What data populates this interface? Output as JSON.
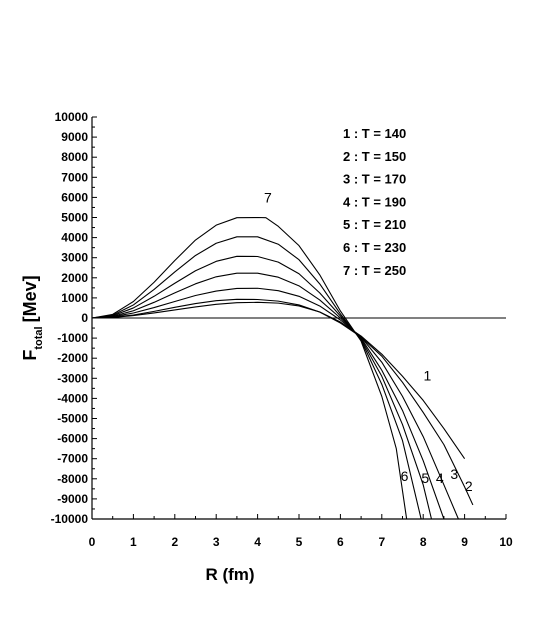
{
  "chart_data": {
    "type": "line",
    "xlabel": "R (fm)",
    "ylabel_main": "F",
    "ylabel_sub": "total",
    "ylabel_unit": "[Mev]",
    "xlim": [
      0,
      10
    ],
    "ylim": [
      -10000,
      10000
    ],
    "xticks": [
      0,
      1,
      2,
      3,
      4,
      5,
      6,
      7,
      8,
      9,
      10
    ],
    "yticks": [
      10000,
      9000,
      8000,
      7000,
      6000,
      5000,
      4000,
      3000,
      2000,
      1000,
      0,
      -1000,
      -2000,
      -3000,
      -4000,
      -5000,
      -6000,
      -7000,
      -8000,
      -9000,
      -10000
    ],
    "legend_placement": "top-right",
    "grid": false,
    "legend": [
      "1 : T = 140",
      "2 : T = 150",
      "3 : T = 170",
      "4 : T = 190",
      "5 : T = 210",
      "6 : T = 230",
      "7 : T = 250"
    ],
    "series": [
      {
        "label": "1",
        "x": [
          0,
          0.5,
          1,
          1.5,
          2,
          2.5,
          3,
          3.5,
          4,
          4.5,
          5,
          5.5,
          6,
          6.5,
          7,
          7.5,
          8,
          8.5,
          9
        ],
        "y": [
          0,
          30,
          120,
          250,
          400,
          550,
          680,
          760,
          780,
          740,
          600,
          300,
          -200,
          -900,
          -1800,
          -2900,
          -4100,
          -5500,
          -7000
        ]
      },
      {
        "label": "2",
        "x": [
          0,
          0.5,
          1,
          1.5,
          2,
          2.5,
          3,
          3.5,
          4,
          4.5,
          5,
          5.5,
          6,
          6.5,
          7,
          7.5,
          8,
          8.5,
          9,
          9.2
        ],
        "y": [
          0,
          40,
          150,
          330,
          530,
          720,
          860,
          930,
          920,
          840,
          650,
          300,
          -250,
          -950,
          -1900,
          -3200,
          -4700,
          -6300,
          -8400,
          -9300
        ]
      },
      {
        "label": "3",
        "x": [
          0,
          0.5,
          1,
          1.5,
          2,
          2.5,
          3,
          3.5,
          4,
          4.5,
          5,
          5.5,
          6,
          6.5,
          7,
          7.5,
          8,
          8.5,
          8.85
        ],
        "y": [
          0,
          60,
          250,
          520,
          820,
          1120,
          1340,
          1470,
          1480,
          1360,
          1080,
          600,
          -100,
          -950,
          -2200,
          -3900,
          -5900,
          -8300,
          -10000
        ]
      },
      {
        "label": "4",
        "x": [
          0,
          0.5,
          1,
          1.5,
          2,
          2.5,
          3,
          3.5,
          4,
          4.5,
          5,
          5.5,
          6,
          6.5,
          7,
          7.5,
          8,
          8.5
        ],
        "y": [
          0,
          80,
          360,
          780,
          1250,
          1700,
          2050,
          2230,
          2230,
          2030,
          1600,
          900,
          0,
          -1000,
          -2600,
          -4600,
          -7100,
          -10000
        ]
      },
      {
        "label": "5",
        "x": [
          0,
          0.5,
          1,
          1.5,
          2,
          2.5,
          3,
          3.5,
          4,
          4.5,
          5,
          5.5,
          6,
          6.5,
          7,
          7.5,
          8,
          8.2
        ],
        "y": [
          0,
          110,
          500,
          1080,
          1730,
          2350,
          2820,
          3070,
          3060,
          2780,
          2200,
          1250,
          100,
          -1050,
          -2900,
          -5300,
          -8300,
          -10000
        ]
      },
      {
        "label": "6",
        "x": [
          0,
          0.5,
          1,
          1.5,
          2,
          2.5,
          3,
          3.5,
          4,
          4.5,
          5,
          5.5,
          6,
          6.5,
          7,
          7.5,
          7.95
        ],
        "y": [
          0,
          140,
          650,
          1420,
          2290,
          3110,
          3720,
          4040,
          4040,
          3670,
          2900,
          1700,
          200,
          -1100,
          -3300,
          -6100,
          -10000
        ]
      },
      {
        "label": "7",
        "x": [
          0,
          0.5,
          1,
          1.5,
          2,
          2.5,
          3,
          3.5,
          4,
          4.2,
          4.5,
          5,
          5.5,
          6,
          6.5,
          7,
          7.35,
          7.6
        ],
        "y": [
          0,
          180,
          820,
          1780,
          2860,
          3880,
          4620,
          4990,
          5000,
          4990,
          4560,
          3600,
          2150,
          350,
          -1150,
          -3900,
          -6500,
          -10000
        ]
      }
    ],
    "curve_labels": [
      {
        "text": "7",
        "x": 4.25,
        "y": 5750
      },
      {
        "text": "1",
        "x": 8.1,
        "y": -3100
      },
      {
        "text": "2",
        "x": 9.1,
        "y": -8600
      },
      {
        "text": "3",
        "x": 8.75,
        "y": -8000
      },
      {
        "text": "4",
        "x": 8.4,
        "y": -8200
      },
      {
        "text": "5",
        "x": 8.05,
        "y": -8200
      },
      {
        "text": "6",
        "x": 7.55,
        "y": -8100
      }
    ]
  }
}
